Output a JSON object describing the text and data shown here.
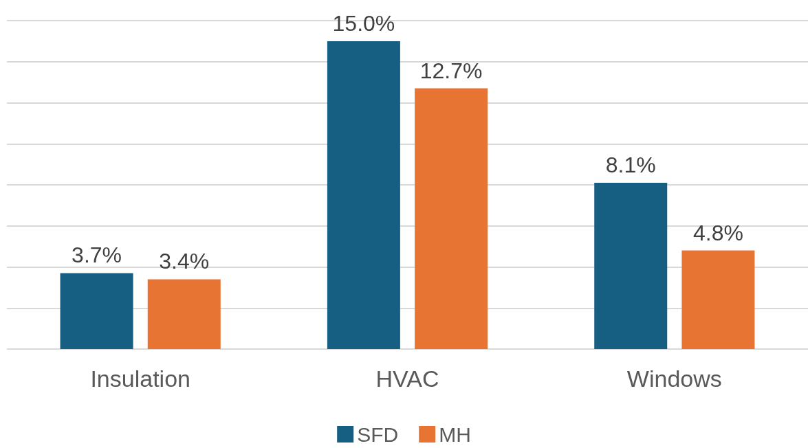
{
  "chart_data": {
    "type": "bar",
    "categories": [
      "Insulation",
      "HVAC",
      "Windows"
    ],
    "series": [
      {
        "name": "SFD",
        "color": "#175f82",
        "values": [
          3.7,
          15.0,
          8.1
        ],
        "value_labels": [
          "3.7%",
          "15.0%",
          "8.1%"
        ]
      },
      {
        "name": "MH",
        "color": "#e87433",
        "values": [
          3.4,
          12.7,
          4.8
        ],
        "value_labels": [
          "3.4%",
          "12.7%",
          "4.8%"
        ]
      }
    ],
    "ylim": [
      0,
      16
    ],
    "yticks": [
      {
        "value": 0,
        "label": null
      },
      {
        "value": 2,
        "label": null
      },
      {
        "value": 4,
        "label": null
      },
      {
        "value": 6,
        "label": null
      },
      {
        "value": 8,
        "label": null
      },
      {
        "value": 10,
        "label": null
      },
      {
        "value": 12,
        "label": null
      },
      {
        "value": 14,
        "label": null
      },
      {
        "value": 16,
        "label": null
      }
    ],
    "grid": "y",
    "legend": "bottom",
    "tick_labels": "x"
  }
}
